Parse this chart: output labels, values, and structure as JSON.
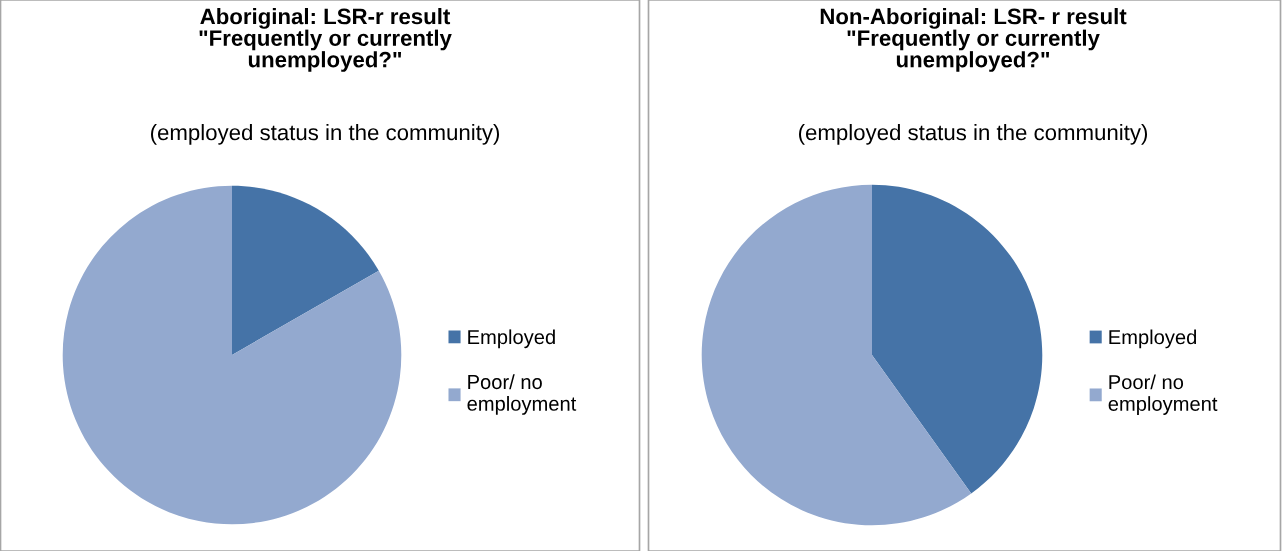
{
  "chart_data": [
    {
      "type": "pie",
      "title": "Aboriginal: LSR-r result\n\"Frequently or currently\nunemployed?\"",
      "subtitle": "(employed status in the community)",
      "categories": [
        "Employed",
        "Poor/ no\nemployment"
      ],
      "values": [
        16.7,
        83.3
      ],
      "colors": [
        "#4573a7",
        "#93a9cf"
      ],
      "legend": "right"
    },
    {
      "type": "pie",
      "title": "Non-Aboriginal: LSR- r result\n\"Frequently or currently\nunemployed?\"",
      "subtitle": "(employed status in the community)",
      "categories": [
        "Employed",
        "Poor/ no\nemployment"
      ],
      "values": [
        40.1,
        59.9
      ],
      "colors": [
        "#4573a7",
        "#93a9cf"
      ],
      "legend": "right"
    }
  ]
}
